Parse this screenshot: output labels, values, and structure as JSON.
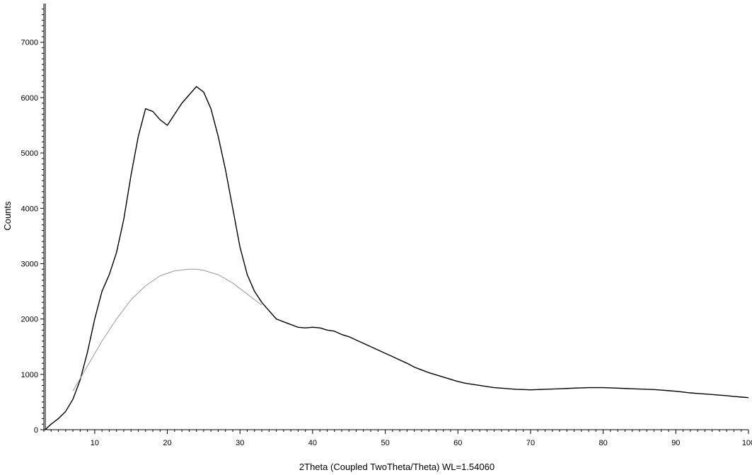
{
  "chart_data": {
    "type": "line",
    "title": "",
    "xlabel": "2Theta (Coupled TwoTheta/Theta) WL=1.54060",
    "ylabel": "Counts",
    "xlim": [
      3,
      100
    ],
    "ylim": [
      0,
      7700
    ],
    "x_ticks": [
      10,
      20,
      30,
      40,
      50,
      60,
      70,
      80,
      90,
      100
    ],
    "y_ticks": [
      0,
      1000,
      2000,
      3000,
      4000,
      5000,
      6000,
      7000
    ],
    "grid": false,
    "legend": "none",
    "series": [
      {
        "role": "measured",
        "color": "#000000",
        "x": [
          3.2,
          3.5,
          4,
          5,
          6,
          7,
          8,
          9,
          10,
          11,
          12,
          13,
          14,
          15,
          16,
          17,
          18,
          19,
          20,
          21,
          22,
          23,
          24,
          25,
          26,
          27,
          28,
          29,
          30,
          31,
          32,
          33,
          34,
          35,
          36,
          37,
          38,
          39,
          40,
          41,
          42,
          43,
          44,
          45,
          46,
          47,
          48,
          49,
          50,
          51,
          52,
          53,
          54,
          55,
          56,
          57,
          58,
          59,
          60,
          61,
          62,
          63,
          64,
          65,
          66,
          67,
          68,
          69,
          70,
          71,
          72,
          73,
          74,
          75,
          76,
          77,
          78,
          79,
          80,
          81,
          82,
          83,
          84,
          85,
          86,
          87,
          88,
          89,
          90,
          91,
          92,
          93,
          94,
          95,
          96,
          97,
          98,
          99,
          100
        ],
        "y": [
          0,
          40,
          100,
          200,
          330,
          550,
          900,
          1400,
          2000,
          2500,
          2800,
          3200,
          3800,
          4600,
          5300,
          5800,
          5750,
          5600,
          5500,
          5700,
          5900,
          6050,
          6200,
          6100,
          5800,
          5300,
          4700,
          4000,
          3300,
          2800,
          2500,
          2300,
          2150,
          2000,
          1950,
          1900,
          1850,
          1840,
          1850,
          1840,
          1800,
          1780,
          1720,
          1680,
          1620,
          1560,
          1500,
          1440,
          1380,
          1320,
          1260,
          1200,
          1130,
          1080,
          1030,
          990,
          950,
          910,
          870,
          840,
          820,
          800,
          780,
          760,
          750,
          740,
          730,
          725,
          720,
          725,
          730,
          735,
          740,
          745,
          750,
          755,
          760,
          760,
          760,
          755,
          750,
          745,
          740,
          735,
          730,
          725,
          715,
          705,
          695,
          680,
          665,
          655,
          645,
          635,
          625,
          615,
          600,
          590,
          580
        ]
      },
      {
        "role": "background",
        "color": "#999999",
        "x": [
          7,
          9,
          11,
          13,
          15,
          17,
          19,
          21,
          23,
          24,
          25,
          27,
          29,
          31,
          33
        ],
        "y": [
          700,
          1150,
          1600,
          2000,
          2350,
          2600,
          2780,
          2870,
          2900,
          2900,
          2880,
          2800,
          2650,
          2450,
          2250
        ]
      }
    ]
  }
}
